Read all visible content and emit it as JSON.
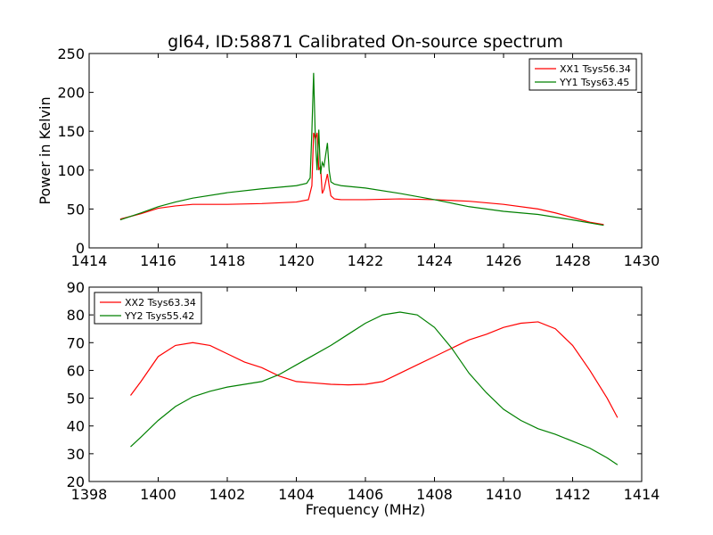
{
  "chart_data": [
    {
      "type": "line",
      "title": "gl64, ID:58871 Calibrated On-source spectrum",
      "xlabel": "",
      "ylabel": "Power in Kelvin",
      "xlim": [
        1414,
        1430
      ],
      "ylim": [
        0,
        250
      ],
      "xticks": [
        1414,
        1416,
        1418,
        1420,
        1422,
        1424,
        1426,
        1428,
        1430
      ],
      "yticks": [
        0,
        50,
        100,
        150,
        200,
        250
      ],
      "grid": false,
      "legend_position": "top-right",
      "series": [
        {
          "name": "XX1 Tsys56.34",
          "color": "#ff0000",
          "x": [
            1414.9,
            1415.5,
            1416.0,
            1416.5,
            1417.0,
            1418.0,
            1419.0,
            1420.0,
            1420.35,
            1420.45,
            1420.5,
            1420.55,
            1420.6,
            1420.65,
            1420.7,
            1420.75,
            1420.8,
            1420.85,
            1420.9,
            1420.95,
            1421.0,
            1421.1,
            1421.3,
            1422.0,
            1423.0,
            1424.0,
            1425.0,
            1426.0,
            1427.0,
            1427.5,
            1428.0,
            1428.5,
            1428.9
          ],
          "y": [
            37,
            44,
            51,
            54,
            56,
            56,
            57,
            59,
            62,
            80,
            148,
            140,
            148,
            100,
            105,
            70,
            75,
            85,
            95,
            80,
            67,
            63,
            62,
            62,
            63,
            62,
            60,
            56,
            50,
            45,
            39,
            33,
            30
          ]
        },
        {
          "name": "YY1 Tsys63.45",
          "color": "#008000",
          "x": [
            1414.9,
            1415.5,
            1416.0,
            1416.5,
            1417.0,
            1418.0,
            1419.0,
            1420.0,
            1420.3,
            1420.4,
            1420.45,
            1420.5,
            1420.55,
            1420.6,
            1420.65,
            1420.7,
            1420.75,
            1420.8,
            1420.85,
            1420.9,
            1420.95,
            1421.0,
            1421.1,
            1421.3,
            1422.0,
            1423.0,
            1424.0,
            1425.0,
            1426.0,
            1427.0,
            1428.0,
            1428.9
          ],
          "y": [
            36,
            45,
            53,
            59,
            64,
            71,
            76,
            80,
            83,
            90,
            150,
            225,
            140,
            100,
            152,
            95,
            110,
            105,
            120,
            135,
            100,
            85,
            82,
            80,
            77,
            70,
            62,
            53,
            47,
            43,
            36,
            29
          ]
        }
      ]
    },
    {
      "type": "line",
      "title": "",
      "xlabel": "Frequency (MHz)",
      "ylabel": "",
      "xlim": [
        1398,
        1414
      ],
      "ylim": [
        20,
        90
      ],
      "xticks": [
        1398,
        1400,
        1402,
        1404,
        1406,
        1408,
        1410,
        1412,
        1414
      ],
      "yticks": [
        20,
        30,
        40,
        50,
        60,
        70,
        80,
        90
      ],
      "grid": false,
      "legend_position": "top-left",
      "series": [
        {
          "name": "XX2 Tsys63.34",
          "color": "#ff0000",
          "x": [
            1399.2,
            1399.5,
            1400.0,
            1400.5,
            1401.0,
            1401.5,
            1402.0,
            1402.5,
            1403.0,
            1403.5,
            1404.0,
            1404.5,
            1405.0,
            1405.5,
            1406.0,
            1406.5,
            1407.0,
            1407.5,
            1408.0,
            1408.5,
            1409.0,
            1409.5,
            1410.0,
            1410.5,
            1411.0,
            1411.5,
            1412.0,
            1412.5,
            1413.0,
            1413.3
          ],
          "y": [
            51,
            56,
            65,
            69,
            70,
            69,
            66,
            63,
            61,
            58,
            56,
            55.5,
            55,
            54.8,
            55,
            56,
            59,
            62,
            65,
            68,
            71,
            73,
            75.5,
            77,
            77.5,
            75,
            69,
            60,
            50,
            43
          ]
        },
        {
          "name": "YY2 Tsys55.42",
          "color": "#008000",
          "x": [
            1399.2,
            1399.5,
            1400.0,
            1400.5,
            1401.0,
            1401.5,
            1402.0,
            1402.5,
            1403.0,
            1403.5,
            1404.0,
            1404.5,
            1405.0,
            1405.5,
            1406.0,
            1406.5,
            1407.0,
            1407.5,
            1408.0,
            1408.5,
            1409.0,
            1409.5,
            1410.0,
            1410.5,
            1411.0,
            1411.5,
            1412.0,
            1412.5,
            1413.0,
            1413.3
          ],
          "y": [
            32.5,
            36,
            42,
            47,
            50.5,
            52.5,
            54,
            55,
            56,
            58.5,
            62,
            65.5,
            69,
            73,
            77,
            80,
            81,
            80,
            75.5,
            68,
            59,
            52,
            46,
            42,
            39,
            37,
            34.5,
            32,
            28.5,
            26
          ]
        }
      ]
    }
  ]
}
